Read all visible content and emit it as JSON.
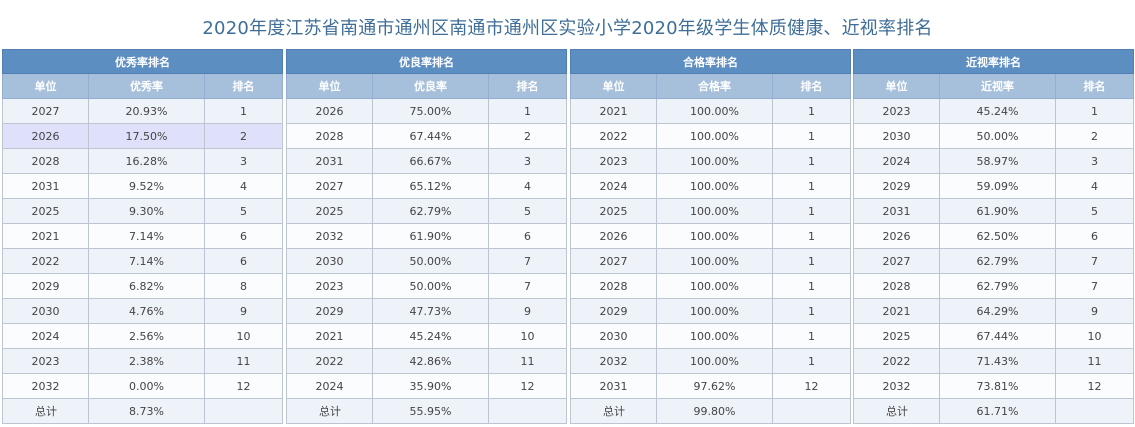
{
  "title": "2020年度江苏省南通市通州区南通市通州区实验小学2020年级学生体质健康、近视率排名",
  "tables": [
    {
      "caption": "优秀率排名",
      "headers": [
        "单位",
        "优秀率",
        "排名"
      ],
      "rows": [
        [
          "2027",
          "20.93%",
          "1"
        ],
        [
          "2026",
          "17.50%",
          "2"
        ],
        [
          "2028",
          "16.28%",
          "3"
        ],
        [
          "2031",
          "9.52%",
          "4"
        ],
        [
          "2025",
          "9.30%",
          "5"
        ],
        [
          "2021",
          "7.14%",
          "6"
        ],
        [
          "2022",
          "7.14%",
          "6"
        ],
        [
          "2029",
          "6.82%",
          "8"
        ],
        [
          "2030",
          "4.76%",
          "9"
        ],
        [
          "2024",
          "2.56%",
          "10"
        ],
        [
          "2023",
          "2.38%",
          "11"
        ],
        [
          "2032",
          "0.00%",
          "12"
        ]
      ],
      "total": [
        "总计",
        "8.73%",
        ""
      ]
    },
    {
      "caption": "优良率排名",
      "headers": [
        "单位",
        "优良率",
        "排名"
      ],
      "rows": [
        [
          "2026",
          "75.00%",
          "1"
        ],
        [
          "2028",
          "67.44%",
          "2"
        ],
        [
          "2031",
          "66.67%",
          "3"
        ],
        [
          "2027",
          "65.12%",
          "4"
        ],
        [
          "2025",
          "62.79%",
          "5"
        ],
        [
          "2032",
          "61.90%",
          "6"
        ],
        [
          "2030",
          "50.00%",
          "7"
        ],
        [
          "2023",
          "50.00%",
          "7"
        ],
        [
          "2029",
          "47.73%",
          "9"
        ],
        [
          "2021",
          "45.24%",
          "10"
        ],
        [
          "2022",
          "42.86%",
          "11"
        ],
        [
          "2024",
          "35.90%",
          "12"
        ]
      ],
      "total": [
        "总计",
        "55.95%",
        ""
      ]
    },
    {
      "caption": "合格率排名",
      "headers": [
        "单位",
        "合格率",
        "排名"
      ],
      "rows": [
        [
          "2021",
          "100.00%",
          "1"
        ],
        [
          "2022",
          "100.00%",
          "1"
        ],
        [
          "2023",
          "100.00%",
          "1"
        ],
        [
          "2024",
          "100.00%",
          "1"
        ],
        [
          "2025",
          "100.00%",
          "1"
        ],
        [
          "2026",
          "100.00%",
          "1"
        ],
        [
          "2027",
          "100.00%",
          "1"
        ],
        [
          "2028",
          "100.00%",
          "1"
        ],
        [
          "2029",
          "100.00%",
          "1"
        ],
        [
          "2030",
          "100.00%",
          "1"
        ],
        [
          "2032",
          "100.00%",
          "1"
        ],
        [
          "2031",
          "97.62%",
          "12"
        ]
      ],
      "total": [
        "总计",
        "99.80%",
        ""
      ]
    },
    {
      "caption": "近视率排名",
      "headers": [
        "单位",
        "近视率",
        "排名"
      ],
      "rows": [
        [
          "2023",
          "45.24%",
          "1"
        ],
        [
          "2030",
          "50.00%",
          "2"
        ],
        [
          "2024",
          "58.97%",
          "3"
        ],
        [
          "2029",
          "59.09%",
          "4"
        ],
        [
          "2031",
          "61.90%",
          "5"
        ],
        [
          "2026",
          "62.50%",
          "6"
        ],
        [
          "2027",
          "62.79%",
          "7"
        ],
        [
          "2028",
          "62.79%",
          "7"
        ],
        [
          "2021",
          "64.29%",
          "9"
        ],
        [
          "2025",
          "67.44%",
          "10"
        ],
        [
          "2022",
          "71.43%",
          "11"
        ],
        [
          "2032",
          "73.81%",
          "12"
        ]
      ],
      "total": [
        "总计",
        "61.71%",
        ""
      ]
    }
  ],
  "colors": {
    "title": "#3f6e98",
    "caption_bg": "#5d8ec2",
    "header_bg": "#a6bfdb",
    "row_odd": "#eef3fa",
    "row_even": "#fbfcfe",
    "highlight_row": "#dfe1fb"
  }
}
